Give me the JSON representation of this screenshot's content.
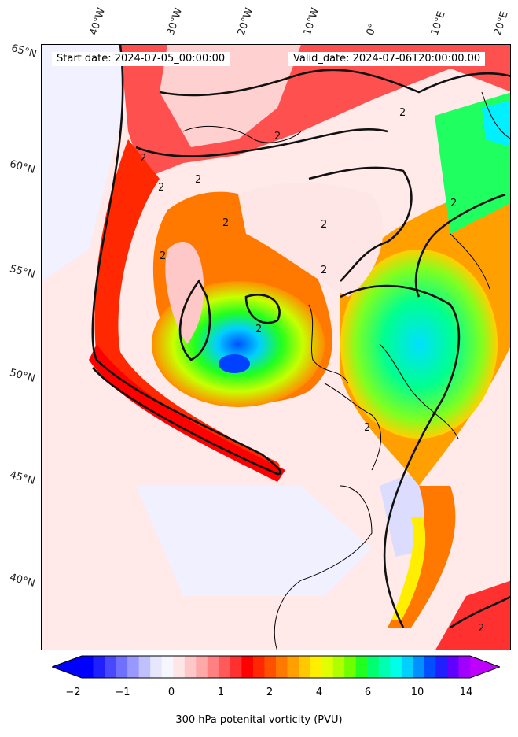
{
  "header": {
    "start_date": "Start date: 2024-07-05_00:00:00",
    "valid_date": "Valid_date: 2024-07-06T20:00:00.00"
  },
  "longitude_labels": [
    "40°W",
    "30°W",
    "20°W",
    "10°W",
    "0°",
    "10°E",
    "20°E"
  ],
  "latitude_labels": [
    "65°N",
    "60°N",
    "55°N",
    "50°N",
    "45°N",
    "40°N"
  ],
  "colorbar": {
    "label": "300 hPa potenital vorticity (PVU)",
    "ticks": [
      "−2",
      "−1",
      "0",
      "1",
      "2",
      "4",
      "6",
      "10",
      "14"
    ],
    "colors": [
      "#0000ff",
      "#2020ff",
      "#4848ff",
      "#7070ff",
      "#9898ff",
      "#c0c0ff",
      "#e6e6ff",
      "#f6f6ff",
      "#ffe6e6",
      "#ffc8c8",
      "#ffa8a8",
      "#ff8080",
      "#ff5a5a",
      "#ff3030",
      "#ff0000",
      "#ff2800",
      "#ff5000",
      "#ff7800",
      "#ffa000",
      "#ffc800",
      "#ffee00",
      "#e0ff00",
      "#b0ff00",
      "#70ff00",
      "#20ff20",
      "#00ff70",
      "#00ffb0",
      "#00ffe8",
      "#00d0ff",
      "#0090ff",
      "#0050ff",
      "#2020ff",
      "#6000ff",
      "#a000ff"
    ],
    "extend_low_color": "#0000ff",
    "extend_high_color": "#c000ff"
  },
  "contour_label": "2"
}
